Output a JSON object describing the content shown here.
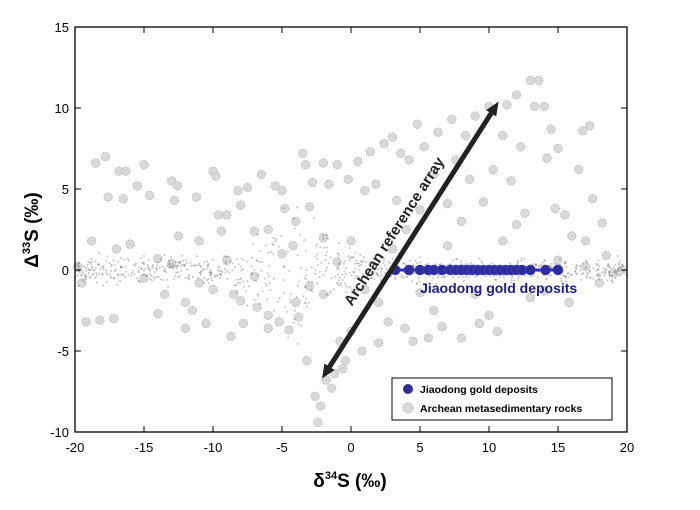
{
  "chart_data": {
    "type": "scatter",
    "xlabel": {
      "main": "δ",
      "sup": "34",
      "rest": "S (‰)"
    },
    "ylabel": {
      "main": "Δ",
      "sup": "33",
      "rest": "S (‰)"
    },
    "xlim": [
      -20,
      20
    ],
    "ylim": [
      -10,
      15
    ],
    "xticks": [
      -20,
      -15,
      -10,
      -5,
      0,
      5,
      10,
      15,
      20
    ],
    "yticks": [
      -10,
      -5,
      0,
      5,
      10,
      15
    ],
    "grid": false,
    "legend_placement": "bottom-right",
    "series": [
      {
        "name": "Archean metasedimentary rocks",
        "color": "#d9d9d9",
        "points": [
          [
            -19.8,
            0.2
          ],
          [
            -19.5,
            -0.8
          ],
          [
            -19.2,
            -3.2
          ],
          [
            -18.8,
            1.8
          ],
          [
            -18.5,
            6.6
          ],
          [
            -18.2,
            -3.1
          ],
          [
            -17.8,
            7
          ],
          [
            -17.6,
            4.5
          ],
          [
            -17.2,
            -3
          ],
          [
            -17,
            1.3
          ],
          [
            -16.8,
            6.1
          ],
          [
            -16.5,
            4.4
          ],
          [
            -16.3,
            6.1
          ],
          [
            -16,
            1.6
          ],
          [
            -15.5,
            5.2
          ],
          [
            -15,
            6.5
          ],
          [
            -14.6,
            4.6
          ],
          [
            -14,
            0.7
          ],
          [
            -13.5,
            -1.5
          ],
          [
            -13,
            5.5
          ],
          [
            -12.8,
            4.3
          ],
          [
            -12.6,
            5.2
          ],
          [
            -12.5,
            2.1
          ],
          [
            -12,
            -3.6
          ],
          [
            -11.5,
            -2.5
          ],
          [
            -11.2,
            4.5
          ],
          [
            -11,
            1.8
          ],
          [
            -10.5,
            -3.3
          ],
          [
            -10,
            6.1
          ],
          [
            -9.8,
            5.8
          ],
          [
            -9.6,
            3.4
          ],
          [
            -9.4,
            2.4
          ],
          [
            -9,
            3.4
          ],
          [
            -8.7,
            -4.1
          ],
          [
            -8.5,
            -1.5
          ],
          [
            -8.2,
            4.9
          ],
          [
            -8,
            4
          ],
          [
            -7.8,
            -3.3
          ],
          [
            -7.5,
            5.1
          ],
          [
            -7,
            2.4
          ],
          [
            -6.8,
            -2.3
          ],
          [
            -6.5,
            5.9
          ],
          [
            -6,
            -3.6
          ],
          [
            -5.5,
            5.2
          ],
          [
            -5.2,
            -3.2
          ],
          [
            -5,
            4.9
          ],
          [
            -4.8,
            3.8
          ],
          [
            -4.5,
            -3.7
          ],
          [
            -4.2,
            1.5
          ],
          [
            -3.8,
            -2.9
          ],
          [
            -3.5,
            7.2
          ],
          [
            -3.3,
            6.5
          ],
          [
            -3.2,
            -5.6
          ],
          [
            -3,
            3.9
          ],
          [
            -2.8,
            5.4
          ],
          [
            -2.6,
            -7.8
          ],
          [
            -2.4,
            -9.4
          ],
          [
            -2.2,
            -8.4
          ],
          [
            -2,
            6.6
          ],
          [
            -1.8,
            -6.8
          ],
          [
            -1.6,
            5.3
          ],
          [
            -1.4,
            -7.3
          ],
          [
            -1.2,
            -6.4
          ],
          [
            -1,
            6.5
          ],
          [
            -0.8,
            -4.4
          ],
          [
            -0.6,
            -6.1
          ],
          [
            -0.4,
            -5.6
          ],
          [
            -0.2,
            5.6
          ],
          [
            0,
            -3.8
          ],
          [
            0.5,
            6.7
          ],
          [
            0.8,
            -5
          ],
          [
            1,
            4.9
          ],
          [
            1.4,
            7.3
          ],
          [
            1.8,
            5.3
          ],
          [
            2,
            -4.5
          ],
          [
            2.4,
            7.8
          ],
          [
            2.7,
            -3.2
          ],
          [
            3,
            8.2
          ],
          [
            3.3,
            4.3
          ],
          [
            3.6,
            7.2
          ],
          [
            3.9,
            -3.6
          ],
          [
            4.2,
            6.8
          ],
          [
            4.5,
            -4.4
          ],
          [
            4.8,
            9
          ],
          [
            5,
            3.7
          ],
          [
            5.3,
            7.6
          ],
          [
            5.6,
            -4.2
          ],
          [
            6,
            5.9
          ],
          [
            6.3,
            8.5
          ],
          [
            6.6,
            -3.5
          ],
          [
            7,
            4.1
          ],
          [
            7.3,
            9.3
          ],
          [
            7.6,
            6.8
          ],
          [
            8,
            -4.2
          ],
          [
            8.3,
            8.3
          ],
          [
            8.6,
            5.6
          ],
          [
            9,
            9.5
          ],
          [
            9.3,
            -3.3
          ],
          [
            9.6,
            4.2
          ],
          [
            10,
            10.1
          ],
          [
            10.3,
            6.2
          ],
          [
            10.6,
            -3.8
          ],
          [
            11,
            8.3
          ],
          [
            11.3,
            10.2
          ],
          [
            11.6,
            5.5
          ],
          [
            12,
            10.8
          ],
          [
            12.3,
            7.6
          ],
          [
            12.6,
            3.5
          ],
          [
            13,
            11.7
          ],
          [
            13.3,
            10.1
          ],
          [
            13.6,
            11.7
          ],
          [
            14,
            10.1
          ],
          [
            14.2,
            6.9
          ],
          [
            14.5,
            8.7
          ],
          [
            14.8,
            3.8
          ],
          [
            15,
            7.5
          ],
          [
            15.5,
            3.4
          ],
          [
            15.8,
            -2
          ],
          [
            16,
            2.1
          ],
          [
            16.5,
            6.2
          ],
          [
            16.8,
            8.6
          ],
          [
            17,
            1.8
          ],
          [
            17.3,
            8.9
          ],
          [
            17.5,
            4.4
          ],
          [
            18,
            -0.8
          ],
          [
            18.2,
            2.9
          ],
          [
            18.5,
            0.9
          ],
          [
            19,
            -0.2
          ],
          [
            19.6,
            0
          ],
          [
            -15,
            -0.5
          ],
          [
            -13,
            0.4
          ],
          [
            -11,
            -0.8
          ],
          [
            -9,
            0.6
          ],
          [
            -7,
            -0.4
          ],
          [
            -5,
            1
          ],
          [
            -3,
            -1
          ],
          [
            -1,
            0.5
          ],
          [
            1,
            -1.2
          ],
          [
            3,
            1.3
          ],
          [
            5,
            -1.4
          ],
          [
            7,
            1.5
          ],
          [
            9,
            -1.5
          ],
          [
            11,
            1.8
          ],
          [
            13,
            -1.7
          ],
          [
            15,
            0.6
          ],
          [
            17,
            0.2
          ],
          [
            -6,
            2.5
          ],
          [
            -4,
            3
          ],
          [
            -2,
            2
          ],
          [
            -8,
            -1.9
          ],
          [
            -10,
            -1.2
          ],
          [
            -12,
            -2
          ],
          [
            -14,
            -2.7
          ],
          [
            -6,
            -2.8
          ],
          [
            -4,
            -2
          ],
          [
            -2,
            -1.5
          ],
          [
            0,
            1.8
          ],
          [
            2,
            -2
          ],
          [
            4,
            2.5
          ],
          [
            6,
            -2.5
          ],
          [
            8,
            3
          ],
          [
            10,
            -2.8
          ],
          [
            12,
            2.8
          ],
          [
            14,
            -1.3
          ]
        ]
      },
      {
        "name": "Jiaodong gold deposits",
        "color": "#2e2e9a",
        "points": [
          [
            3.2,
            0
          ],
          [
            4.2,
            0
          ],
          [
            5,
            0
          ],
          [
            5.6,
            0
          ],
          [
            6,
            0
          ],
          [
            6.6,
            0
          ],
          [
            7.2,
            0
          ],
          [
            7.6,
            0
          ],
          [
            8,
            0
          ],
          [
            8.4,
            0
          ],
          [
            8.8,
            0
          ],
          [
            9.2,
            0
          ],
          [
            9.6,
            0
          ],
          [
            10,
            0
          ],
          [
            10.4,
            0
          ],
          [
            10.8,
            0
          ],
          [
            11.2,
            0
          ],
          [
            11.6,
            0
          ],
          [
            12,
            0
          ],
          [
            12.4,
            0
          ],
          [
            13,
            0
          ],
          [
            14.1,
            0
          ],
          [
            15,
            0
          ]
        ]
      }
    ],
    "annotations": [
      {
        "text": "Archean reference array",
        "arrow_from": [
          -2.1,
          -6.7
        ],
        "arrow_to": [
          10.7,
          10.4
        ],
        "color": "#222222"
      },
      {
        "text": "Jiaodong gold deposits",
        "at": [
          10.7,
          -1.1
        ],
        "color": "#1a1a8c"
      }
    ],
    "legend": [
      {
        "label": "Jiaodong gold deposits",
        "color": "#2e2e9a"
      },
      {
        "label": "Archean metasedimentary rocks",
        "color": "#d9d9d9"
      }
    ]
  }
}
